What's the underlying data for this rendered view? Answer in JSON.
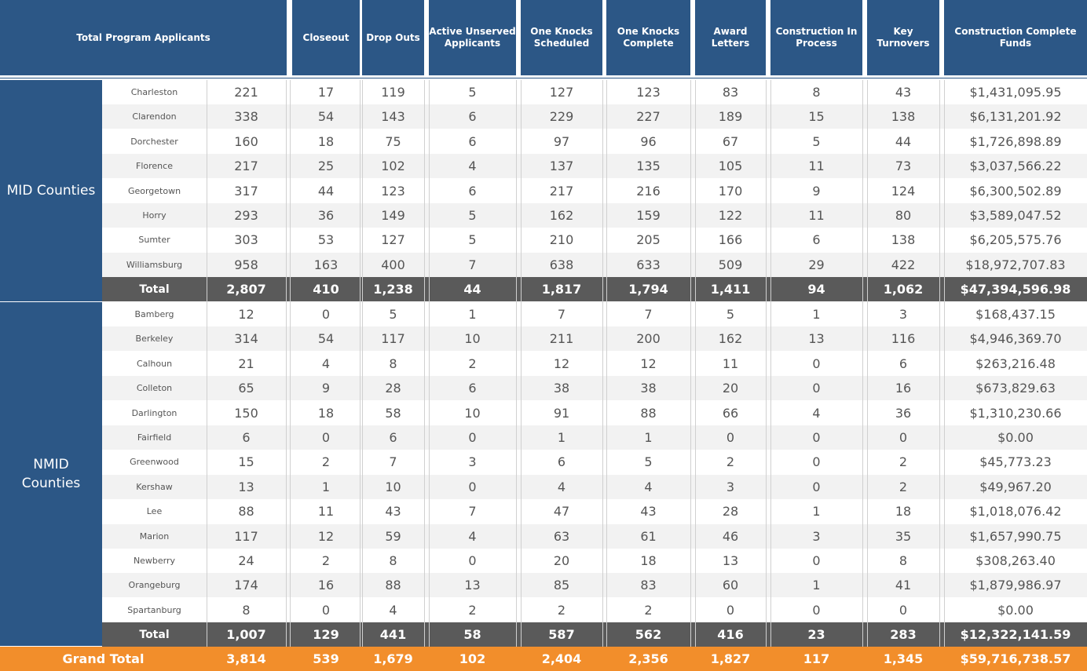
{
  "headers": {
    "total_program_applicants": "Total Program Applicants",
    "closeout": "Closeout",
    "drop_outs": "Drop Outs",
    "active_unserved_applicants": "Active Unserved Applicants",
    "one_knocks_scheduled": "One Knocks Scheduled",
    "one_knocks_complete": "One Knocks Complete",
    "award_letters": "Award Letters",
    "construction_in_process": "Construction In Process",
    "key_turnovers": "Key Turnovers",
    "construction_complete_funds": "Construction Complete Funds"
  },
  "groups": {
    "mid": "MID Counties",
    "nmid_line1": "NMID",
    "nmid_line2": "Counties"
  },
  "rows": [
    {
      "name": "Charleston",
      "c": [
        "221",
        "17",
        "119",
        "5",
        "127",
        "123",
        "83",
        "8",
        "43",
        "$1,431,095.95"
      ]
    },
    {
      "name": "Clarendon",
      "c": [
        "338",
        "54",
        "143",
        "6",
        "229",
        "227",
        "189",
        "15",
        "138",
        "$6,131,201.92"
      ]
    },
    {
      "name": "Dorchester",
      "c": [
        "160",
        "18",
        "75",
        "6",
        "97",
        "96",
        "67",
        "5",
        "44",
        "$1,726,898.89"
      ]
    },
    {
      "name": "Florence",
      "c": [
        "217",
        "25",
        "102",
        "4",
        "137",
        "135",
        "105",
        "11",
        "73",
        "$3,037,566.22"
      ]
    },
    {
      "name": "Georgetown",
      "c": [
        "317",
        "44",
        "123",
        "6",
        "217",
        "216",
        "170",
        "9",
        "124",
        "$6,300,502.89"
      ]
    },
    {
      "name": "Horry",
      "c": [
        "293",
        "36",
        "149",
        "5",
        "162",
        "159",
        "122",
        "11",
        "80",
        "$3,589,047.52"
      ]
    },
    {
      "name": "Sumter",
      "c": [
        "303",
        "53",
        "127",
        "5",
        "210",
        "205",
        "166",
        "6",
        "138",
        "$6,205,575.76"
      ]
    },
    {
      "name": "Williamsburg",
      "c": [
        "958",
        "163",
        "400",
        "7",
        "638",
        "633",
        "509",
        "29",
        "422",
        "$18,972,707.83"
      ]
    },
    {
      "name": "Total",
      "c": [
        "2,807",
        "410",
        "1,238",
        "44",
        "1,817",
        "1,794",
        "1,411",
        "94",
        "1,062",
        "$47,394,596.98"
      ]
    },
    {
      "name": "Bamberg",
      "c": [
        "12",
        "0",
        "5",
        "1",
        "7",
        "7",
        "5",
        "1",
        "3",
        "$168,437.15"
      ]
    },
    {
      "name": "Berkeley",
      "c": [
        "314",
        "54",
        "117",
        "10",
        "211",
        "200",
        "162",
        "13",
        "116",
        "$4,946,369.70"
      ]
    },
    {
      "name": "Calhoun",
      "c": [
        "21",
        "4",
        "8",
        "2",
        "12",
        "12",
        "11",
        "0",
        "6",
        "$263,216.48"
      ]
    },
    {
      "name": "Colleton",
      "c": [
        "65",
        "9",
        "28",
        "6",
        "38",
        "38",
        "20",
        "0",
        "16",
        "$673,829.63"
      ]
    },
    {
      "name": "Darlington",
      "c": [
        "150",
        "18",
        "58",
        "10",
        "91",
        "88",
        "66",
        "4",
        "36",
        "$1,310,230.66"
      ]
    },
    {
      "name": "Fairfield",
      "c": [
        "6",
        "0",
        "6",
        "0",
        "1",
        "1",
        "0",
        "0",
        "0",
        "$0.00"
      ]
    },
    {
      "name": "Greenwood",
      "c": [
        "15",
        "2",
        "7",
        "3",
        "6",
        "5",
        "2",
        "0",
        "2",
        "$45,773.23"
      ]
    },
    {
      "name": "Kershaw",
      "c": [
        "13",
        "1",
        "10",
        "0",
        "4",
        "4",
        "3",
        "0",
        "2",
        "$49,967.20"
      ]
    },
    {
      "name": "Lee",
      "c": [
        "88",
        "11",
        "43",
        "7",
        "47",
        "43",
        "28",
        "1",
        "18",
        "$1,018,076.42"
      ]
    },
    {
      "name": "Marion",
      "c": [
        "117",
        "12",
        "59",
        "4",
        "63",
        "61",
        "46",
        "3",
        "35",
        "$1,657,990.75"
      ]
    },
    {
      "name": "Newberry",
      "c": [
        "24",
        "2",
        "8",
        "0",
        "20",
        "18",
        "13",
        "0",
        "8",
        "$308,263.40"
      ]
    },
    {
      "name": "Orangeburg",
      "c": [
        "174",
        "16",
        "88",
        "13",
        "85",
        "83",
        "60",
        "1",
        "41",
        "$1,879,986.97"
      ]
    },
    {
      "name": "Spartanburg",
      "c": [
        "8",
        "0",
        "4",
        "2",
        "2",
        "2",
        "0",
        "0",
        "0",
        "$0.00"
      ]
    },
    {
      "name": "Total",
      "c": [
        "1,007",
        "129",
        "441",
        "58",
        "587",
        "562",
        "416",
        "23",
        "283",
        "$12,322,141.59"
      ]
    }
  ],
  "grand_total": {
    "name": "Grand Total",
    "c": [
      "3,814",
      "539",
      "1,679",
      "102",
      "2,404",
      "2,356",
      "1,827",
      "117",
      "1,345",
      "$59,716,738.57"
    ]
  },
  "colors": {
    "header_blue": "#2c5786",
    "total_gray": "#5a5a5a",
    "grand_orange": "#f28e2b",
    "stripe": "#f2f2f2"
  }
}
